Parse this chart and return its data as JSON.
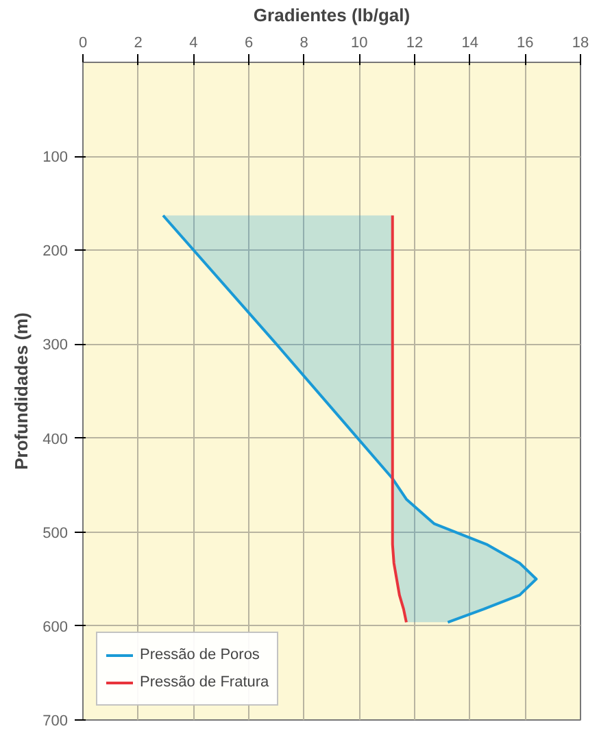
{
  "chart_data": {
    "type": "line",
    "orientation": "horizontal",
    "xlabel": "Gradientes (lb/gal)",
    "ylabel": "Profundidades (m)",
    "xlim": [
      0,
      18
    ],
    "xticks": [
      0,
      2,
      4,
      6,
      8,
      10,
      12,
      14,
      16,
      18
    ],
    "ylim": [
      700,
      0
    ],
    "yticks": [
      100,
      200,
      300,
      400,
      500,
      600,
      700
    ],
    "grid": true,
    "legend": "bottom left",
    "series": [
      {
        "name": "Pressão de Poros",
        "color": "#1a9ad6",
        "x": [
          163,
          300,
          443,
          465,
          491,
          513,
          533,
          550,
          567,
          582,
          596
        ],
        "values": [
          2.9,
          7.0,
          11.2,
          11.7,
          12.7,
          14.6,
          15.8,
          16.4,
          15.8,
          14.5,
          13.2
        ],
        "lower": [
          2.9,
          7.0,
          11.2,
          11.2,
          11.2,
          11.2,
          11.25,
          11.35,
          11.45,
          11.6,
          11.7
        ],
        "upper": [
          11.2,
          11.2,
          11.2,
          11.7,
          12.7,
          14.6,
          15.8,
          16.4,
          15.8,
          14.5,
          13.2
        ]
      },
      {
        "name": "Pressão de Fratura",
        "color": "#e8343c",
        "x": [
          163,
          300,
          443,
          465,
          491,
          513,
          533,
          550,
          567,
          582,
          596
        ],
        "values": [
          11.2,
          11.2,
          11.2,
          11.2,
          11.2,
          11.2,
          11.25,
          11.35,
          11.45,
          11.6,
          11.7
        ]
      }
    ]
  }
}
